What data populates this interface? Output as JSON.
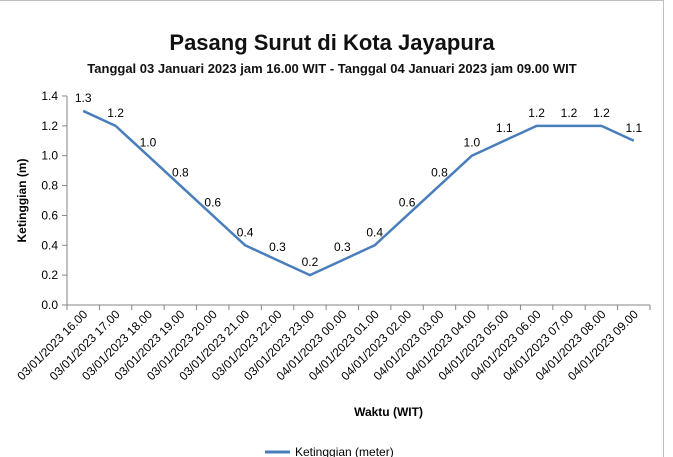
{
  "chart_data": {
    "type": "line",
    "title": "Pasang Surut di Kota Jayapura",
    "subtitle": "Tanggal 03 Januari 2023 jam 16.00 WIT - Tanggal 04 Januari 2023 jam 09.00 WIT",
    "xlabel": "Waktu (WIT)",
    "ylabel": "Ketinggian (m)",
    "ylim": [
      0,
      1.4
    ],
    "yticks": [
      "0.0",
      "0.2",
      "0.4",
      "0.6",
      "0.8",
      "1.0",
      "1.2",
      "1.4"
    ],
    "grid": false,
    "legend_position": "bottom",
    "categories": [
      "03/01/2023 16.00",
      "03/01/2023 17.00",
      "03/01/2023 18.00",
      "03/01/2023 19.00",
      "03/01/2023 20.00",
      "03/01/2023 21.00",
      "03/01/2023 22.00",
      "03/01/2023 23.00",
      "04/01/2023 00.00",
      "04/01/2023 01.00",
      "04/01/2023 02.00",
      "04/01/2023 03.00",
      "04/01/2023 04.00",
      "04/01/2023 05.00",
      "04/01/2023 06.00",
      "04/01/2023 07.00",
      "04/01/2023 08.00",
      "04/01/2023 09.00"
    ],
    "series": [
      {
        "name": "Ketinggian (meter)",
        "color": "#4a7ebb",
        "values": [
          1.3,
          1.2,
          1.0,
          0.8,
          0.6,
          0.4,
          0.3,
          0.2,
          0.3,
          0.4,
          0.6,
          0.8,
          1.0,
          1.1,
          1.2,
          1.2,
          1.2,
          1.1
        ],
        "labels": [
          "1.3",
          "1.2",
          "1.0",
          "0.8",
          "0.6",
          "0.4",
          "0.3",
          "0.2",
          "0.3",
          "0.4",
          "0.6",
          "0.8",
          "1.0",
          "1.1",
          "1.2",
          "1.2",
          "1.2",
          "1.1"
        ]
      }
    ]
  }
}
